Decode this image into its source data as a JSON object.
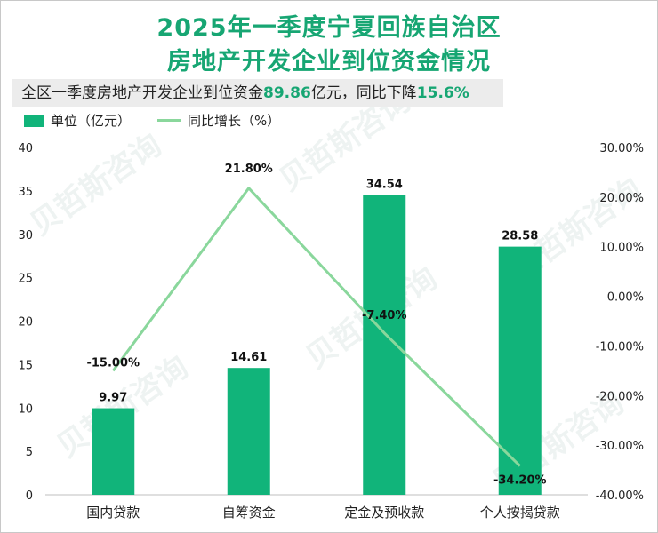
{
  "title_line1": "2025年一季度宁夏回族自治区",
  "title_line2": "房地产开发企业到位资金情况",
  "summary": {
    "prefix": "全区一季度房地产开发企业到位资金",
    "amount": "89.86",
    "mid": "亿元，同比下降",
    "rate": "15.6%"
  },
  "legend": {
    "bar_label": "单位（亿元）",
    "line_label": "同比增长（%）"
  },
  "watermark": "贝哲斯咨询",
  "colors": {
    "bar": "#11b47a",
    "line": "#8ad79c",
    "title": "#17a673"
  },
  "chart_data": {
    "type": "bar",
    "categories": [
      "国内贷款",
      "自筹资金",
      "定金及预收款",
      "个人按揭贷款"
    ],
    "series": [
      {
        "name": "单位（亿元）",
        "type": "bar",
        "axis": "left",
        "values": [
          9.97,
          14.61,
          34.54,
          28.58
        ]
      },
      {
        "name": "同比增长（%）",
        "type": "line",
        "axis": "right",
        "values": [
          -15.0,
          21.8,
          -7.4,
          -34.2
        ]
      }
    ],
    "bar_labels": [
      "9.97",
      "14.61",
      "34.54",
      "28.58"
    ],
    "line_labels": [
      "-15.00%",
      "21.80%",
      "-7.40%",
      "-34.20%"
    ],
    "left_axis": {
      "min": 0,
      "max": 40,
      "step": 5,
      "ticks": [
        "0",
        "5",
        "10",
        "15",
        "20",
        "25",
        "30",
        "35",
        "40"
      ]
    },
    "right_axis": {
      "min": -40,
      "max": 30,
      "step": 10,
      "ticks": [
        "-40.00%",
        "-30.00%",
        "-20.00%",
        "-10.00%",
        "0.00%",
        "10.00%",
        "20.00%",
        "30.00%"
      ]
    }
  }
}
